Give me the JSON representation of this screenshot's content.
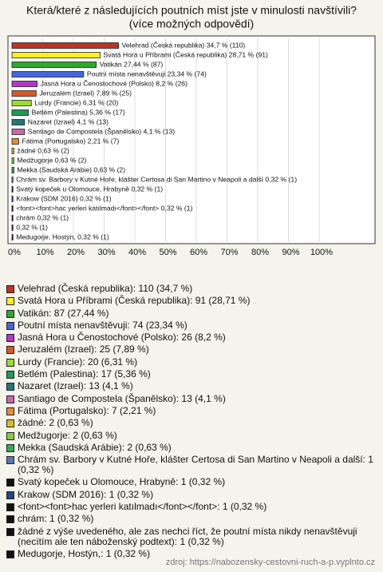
{
  "chart_data": {
    "type": "hbar",
    "title": "Která/které z následujících poutních míst jste v minulosti navštívili?",
    "subtitle": "(více možných odpovědí)",
    "values": [
      34.7,
      28.71,
      27.44,
      23.34,
      8.2,
      7.89,
      6.31,
      5.36,
      4.1,
      4.1,
      2.21,
      0.63,
      0.63,
      0.63,
      0.32,
      0.32,
      0.32,
      0.32,
      0.32,
      0.32,
      0.32
    ],
    "value_labels": [
      "Velehrad (Česká republika) 34,7 % (110)",
      "Svatá Hora u Příbrami (Česká republika) 28,71 % (91)",
      "Vatikán 27,44 % (87)",
      "Poutní místa nenavštěvuji 23,34 % (74)",
      "Jasná Hora u Čenostochové (Polsko) 8,2 % (26)",
      "Jeruzalém (Izrael) 7,89 % (25)",
      "Lurdy (Francie) 6,31 % (20)",
      "Betlém (Palestina) 5,36 % (17)",
      "Nazaret (Izrael) 4,1 % (13)",
      "Santiago de Compostela (Španělsko) 4,1 % (13)",
      "Fátima (Portugalsko) 2,21 % (7)",
      "žádné 0,63 % (2)",
      "Medžugorje 0,63 % (2)",
      "Mekka (Saudská Arábie) 0,63 % (2)",
      "Chrám sv. Barbory v Kutné Hoře, klášter Certosa di San Martino v Neapoli a další 0,32 % (1)",
      "Svatý kopeček u Olomouce, Hrabyně 0,32 % (1)",
      "Krakow (SDM 2016) 0,32 % (1)",
      "<font><font>hac yerleri katılmadı</font></font> 0,32 % (1)",
      "chrám 0,32 % (1)",
      "0,32 % (1)",
      "Medugorje, Hostýn, 0,32 % (1)"
    ],
    "legend_labels": [
      "Velehrad (Česká republika): 110 (34,7 %)",
      "Svatá Hora u Příbrami (Česká republika): 91 (28,71 %)",
      "Vatikán: 87 (27,44 %)",
      "Poutní místa nenavštěvuji: 74 (23,34 %)",
      "Jasná Hora u Čenostochové (Polsko): 26 (8,2 %)",
      "Jeruzalém (Izrael): 25 (7,89 %)",
      "Lurdy (Francie): 20 (6,31 %)",
      "Betlém (Palestina): 17 (5,36 %)",
      "Nazaret (Izrael): 13 (4,1 %)",
      "Santiago de Compostela (Španělsko): 13 (4,1 %)",
      "Fátima (Portugalsko): 7 (2,21 %)",
      "žádné: 2 (0,63 %)",
      "Medžugorje: 2 (0,63 %)",
      "Mekka (Saudská Arábie): 2 (0,63 %)",
      "Chrám sv. Barbory v Kutné Hoře, klášter Certosa di San Martino v Neapoli a další: 1 (0,32 %)",
      "Svatý kopeček u Olomouce, Hrabyně: 1 (0,32 %)",
      "Krakow (SDM 2016): 1 (0,32 %)",
      "<font><font>hac yerleri katılmadı</font></font>: 1 (0,32 %)",
      "chrám: 1 (0,32 %)",
      "žádné z výše uvedeného, ale zas nechci říct, že poutní místa nikdy nenavštěvuji (necítím ale ten náboženský podtext): 1 (0,32 %)",
      "Medugorje, Hostýn,: 1 (0,32 %)"
    ],
    "colors": [
      "#c0331f",
      "#ffee22",
      "#2fa82f",
      "#4466dd",
      "#b933cc",
      "#dd5522",
      "#99dd33",
      "#229955",
      "#227777",
      "#cc66aa",
      "#ee8833",
      "#ddbb22",
      "#88cc33",
      "#33aa55",
      "#5577bb",
      "#111111",
      "#224488",
      "#111111",
      "#111111",
      "#111111",
      "#111111"
    ],
    "xlim": [
      0,
      100
    ],
    "xticks": [
      {
        "value": 0,
        "label": "0%"
      },
      {
        "value": 10,
        "label": "10%"
      },
      {
        "value": 20,
        "label": "20%"
      },
      {
        "value": 30,
        "label": "30%"
      },
      {
        "value": 40,
        "label": "40%"
      },
      {
        "value": 50,
        "label": "50%"
      },
      {
        "value": 60,
        "label": "60%"
      },
      {
        "value": 70,
        "label": "70%"
      },
      {
        "value": 80,
        "label": "80%"
      },
      {
        "value": 90,
        "label": "90%"
      },
      {
        "value": 100,
        "label": "100%"
      }
    ],
    "grid": true,
    "source": "zdroj: https://nabozensky-cestovni-ruch-a-p.vyplnto.cz"
  }
}
